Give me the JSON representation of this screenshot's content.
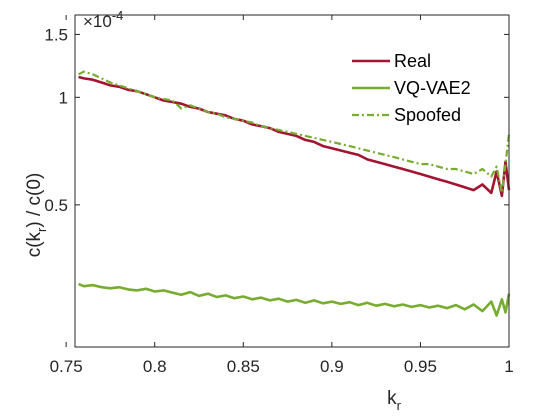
{
  "chart_data": {
    "type": "line",
    "title": "",
    "xlabel": "k_r",
    "ylabel": "c(k_r) / c(0)",
    "exponent_label": "×10",
    "exponent_power": "-4",
    "xlim": [
      0.755,
      1.0
    ],
    "ylim": [
      2e-05,
      0.00017
    ],
    "y_scale": "log",
    "grid": false,
    "legend_position": "top-right",
    "x_ticks": [
      {
        "value": 0.75,
        "label": "0.75"
      },
      {
        "value": 0.8,
        "label": "0.8"
      },
      {
        "value": 0.85,
        "label": "0.85"
      },
      {
        "value": 0.9,
        "label": "0.9"
      },
      {
        "value": 0.95,
        "label": "0.95"
      },
      {
        "value": 1.0,
        "label": "1"
      }
    ],
    "y_ticks": [
      {
        "value": 5e-05,
        "label": "0.5"
      },
      {
        "value": 0.0001,
        "label": "1"
      },
      {
        "value": 0.00015,
        "label": "1.5"
      }
    ],
    "series": [
      {
        "name": "Real",
        "color": "#A2142F",
        "style": "solid",
        "x": [
          0.757,
          0.76,
          0.765,
          0.77,
          0.775,
          0.78,
          0.785,
          0.79,
          0.795,
          0.8,
          0.805,
          0.81,
          0.815,
          0.82,
          0.825,
          0.83,
          0.835,
          0.84,
          0.845,
          0.85,
          0.855,
          0.86,
          0.865,
          0.87,
          0.875,
          0.88,
          0.885,
          0.89,
          0.895,
          0.9,
          0.905,
          0.91,
          0.915,
          0.92,
          0.925,
          0.93,
          0.935,
          0.94,
          0.945,
          0.95,
          0.955,
          0.96,
          0.965,
          0.97,
          0.975,
          0.98,
          0.985,
          0.99,
          0.993,
          0.996,
          0.998,
          1.0
        ],
        "values": [
          0.000114,
          0.000113,
          0.000112,
          0.00011,
          0.000108,
          0.000107,
          0.000105,
          0.000104,
          0.000102,
          0.0001,
          9.8e-05,
          9.7e-05,
          9.6e-05,
          9.4e-05,
          9.3e-05,
          9.1e-05,
          9e-05,
          8.9e-05,
          8.7e-05,
          8.6e-05,
          8.4e-05,
          8.3e-05,
          8.2e-05,
          8e-05,
          7.9e-05,
          7.8e-05,
          7.6e-05,
          7.5e-05,
          7.3e-05,
          7.2e-05,
          7.1e-05,
          7e-05,
          6.9e-05,
          6.7e-05,
          6.6e-05,
          6.5e-05,
          6.4e-05,
          6.3e-05,
          6.2e-05,
          6.1e-05,
          6e-05,
          5.9e-05,
          5.8e-05,
          5.7e-05,
          5.6e-05,
          5.5e-05,
          5.7e-05,
          5.4e-05,
          6.2e-05,
          5.3e-05,
          6.6e-05,
          5.5e-05
        ]
      },
      {
        "name": "VQ-VAE2",
        "color": "#77AC30",
        "style": "solid",
        "x": [
          0.757,
          0.76,
          0.765,
          0.77,
          0.775,
          0.78,
          0.785,
          0.79,
          0.795,
          0.8,
          0.805,
          0.81,
          0.815,
          0.82,
          0.825,
          0.83,
          0.835,
          0.84,
          0.845,
          0.85,
          0.855,
          0.86,
          0.865,
          0.87,
          0.875,
          0.88,
          0.885,
          0.89,
          0.895,
          0.9,
          0.905,
          0.91,
          0.915,
          0.92,
          0.925,
          0.93,
          0.935,
          0.94,
          0.945,
          0.95,
          0.955,
          0.96,
          0.965,
          0.97,
          0.975,
          0.98,
          0.985,
          0.99,
          0.993,
          0.996,
          0.998,
          1.0
        ],
        "values": [
          3e-05,
          2.96e-05,
          2.98e-05,
          2.94e-05,
          2.92e-05,
          2.94e-05,
          2.9e-05,
          2.88e-05,
          2.91e-05,
          2.86e-05,
          2.88e-05,
          2.84e-05,
          2.8e-05,
          2.85e-05,
          2.78e-05,
          2.82e-05,
          2.76e-05,
          2.79e-05,
          2.74e-05,
          2.77e-05,
          2.72e-05,
          2.75e-05,
          2.7e-05,
          2.73e-05,
          2.68e-05,
          2.71e-05,
          2.66e-05,
          2.7e-05,
          2.65e-05,
          2.68e-05,
          2.64e-05,
          2.67e-05,
          2.62e-05,
          2.66e-05,
          2.61e-05,
          2.64e-05,
          2.6e-05,
          2.63e-05,
          2.59e-05,
          2.62e-05,
          2.58e-05,
          2.61e-05,
          2.57e-05,
          2.62e-05,
          2.55e-05,
          2.63e-05,
          2.52e-05,
          2.68e-05,
          2.45e-05,
          2.72e-05,
          2.5e-05,
          2.82e-05
        ]
      },
      {
        "name": "Spoofed",
        "color": "#77AC30",
        "style": "dash-dot",
        "x": [
          0.757,
          0.76,
          0.765,
          0.77,
          0.775,
          0.78,
          0.785,
          0.79,
          0.795,
          0.8,
          0.805,
          0.81,
          0.815,
          0.82,
          0.825,
          0.83,
          0.835,
          0.84,
          0.845,
          0.85,
          0.855,
          0.86,
          0.865,
          0.87,
          0.875,
          0.88,
          0.885,
          0.89,
          0.895,
          0.9,
          0.905,
          0.91,
          0.915,
          0.92,
          0.925,
          0.93,
          0.935,
          0.94,
          0.945,
          0.95,
          0.955,
          0.96,
          0.965,
          0.97,
          0.975,
          0.98,
          0.985,
          0.99,
          0.993,
          0.996,
          0.998,
          1.0
        ],
        "values": [
          0.000116,
          0.000118,
          0.000116,
          0.000113,
          0.00011,
          0.000108,
          0.000106,
          0.000104,
          0.000102,
          0.0001,
          9.9e-05,
          9.8e-05,
          9.3e-05,
          9.5e-05,
          9.3e-05,
          9.1e-05,
          9e-05,
          8.8e-05,
          8.7e-05,
          8.6e-05,
          8.5e-05,
          8.3e-05,
          8.2e-05,
          8.1e-05,
          8e-05,
          7.9e-05,
          7.8e-05,
          7.7e-05,
          7.6e-05,
          7.5e-05,
          7.4e-05,
          7.3e-05,
          7.2e-05,
          7.1e-05,
          7e-05,
          6.9e-05,
          6.8e-05,
          6.7e-05,
          6.6e-05,
          6.5e-05,
          6.5e-05,
          6.4e-05,
          6.3e-05,
          6.3e-05,
          6.2e-05,
          6.1e-05,
          6.3e-05,
          6e-05,
          6.4e-05,
          5.4e-05,
          6.5e-05,
          7.9e-05
        ]
      }
    ]
  }
}
